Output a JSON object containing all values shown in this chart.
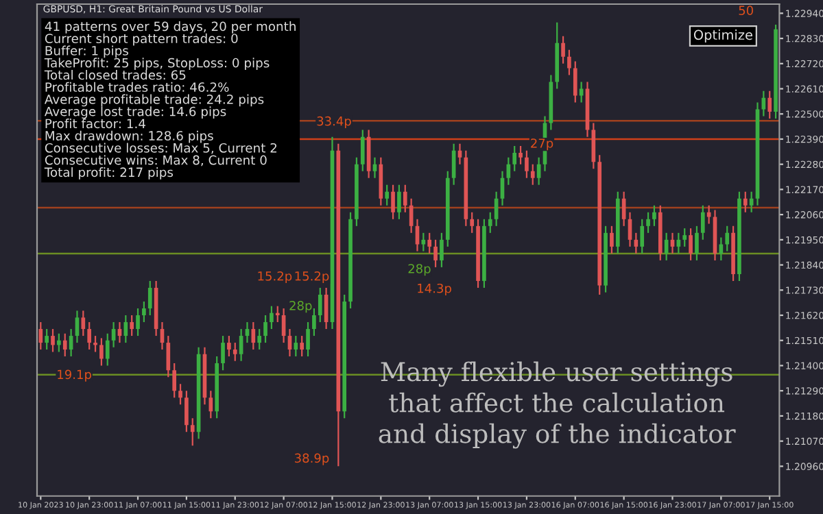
{
  "chart_data": {
    "type": "candlestick",
    "title": "GBPUSD, H1: Great Britain Pound vs US Dollar",
    "categories": [
      "10 Jan 2023",
      null,
      null,
      null,
      null,
      null,
      null,
      null,
      "10 Jan 23:00",
      null,
      null,
      null,
      null,
      null,
      null,
      null,
      "11 Jan 07:00",
      null,
      null,
      null,
      null,
      null,
      null,
      null,
      "11 Jan 15:00",
      null,
      null,
      null,
      null,
      null,
      null,
      null,
      "11 Jan 23:00",
      null,
      null,
      null,
      null,
      null,
      null,
      null,
      "12 Jan 07:00",
      null,
      null,
      null,
      null,
      null,
      null,
      null,
      "12 Jan 15:00",
      null,
      null,
      null,
      null,
      null,
      null,
      null,
      "12 Jan 23:00",
      null,
      null,
      null,
      null,
      null,
      null,
      null,
      "13 Jan 07:00",
      null,
      null,
      null,
      null,
      null,
      null,
      null,
      "13 Jan 15:00",
      null,
      null,
      null,
      null,
      null,
      null,
      null,
      "13 Jan 23:00",
      null,
      null,
      null,
      null,
      null,
      null,
      null,
      "16 Jan 07:00",
      null,
      null,
      null,
      null,
      null,
      null,
      null,
      "16 Jan 15:00",
      null,
      null,
      null,
      null,
      null,
      null,
      null,
      "16 Jan 23:00",
      null,
      null,
      null,
      null,
      null,
      null,
      null,
      "17 Jan 07:00",
      null,
      null,
      null,
      null,
      null,
      null,
      null,
      "17 Jan 15:00",
      null
    ],
    "ohlc": [
      [
        1.2156,
        1.2159,
        1.2147,
        1.215
      ],
      [
        1.215,
        1.2156,
        1.2147,
        1.2153
      ],
      [
        1.2153,
        1.2156,
        1.2146,
        1.2149
      ],
      [
        1.2149,
        1.2154,
        1.2146,
        1.2151
      ],
      [
        1.2151,
        1.2154,
        1.2144,
        1.2147
      ],
      [
        1.2147,
        1.2156,
        1.2144,
        1.2153
      ],
      [
        1.2153,
        1.2164,
        1.215,
        1.2161
      ],
      [
        1.2161,
        1.2164,
        1.2153,
        1.2156
      ],
      [
        1.2156,
        1.2159,
        1.2147,
        1.215
      ],
      [
        1.215,
        1.2153,
        1.2146,
        1.2149
      ],
      [
        1.2149,
        1.2152,
        1.214,
        1.2143
      ],
      [
        1.2143,
        1.2154,
        1.214,
        1.2151
      ],
      [
        1.2151,
        1.2159,
        1.2148,
        1.2156
      ],
      [
        1.2156,
        1.2159,
        1.215,
        1.2153
      ],
      [
        1.2153,
        1.2162,
        1.215,
        1.2159
      ],
      [
        1.2159,
        1.2162,
        1.2153,
        1.2156
      ],
      [
        1.2156,
        1.2165,
        1.2153,
        1.2162
      ],
      [
        1.2162,
        1.2168,
        1.2159,
        1.2165
      ],
      [
        1.2165,
        1.2177,
        1.2162,
        1.2174
      ],
      [
        1.2174,
        1.2177,
        1.2153,
        1.2156
      ],
      [
        1.2156,
        1.2159,
        1.2147,
        1.215
      ],
      [
        1.215,
        1.2153,
        1.2135,
        1.2138
      ],
      [
        1.2138,
        1.2141,
        1.2126,
        1.2129
      ],
      [
        1.2129,
        1.2132,
        1.2123,
        1.2126
      ],
      [
        1.2126,
        1.2129,
        1.2111,
        1.2114
      ],
      [
        1.2114,
        1.2117,
        1.2105,
        1.2111
      ],
      [
        1.2111,
        1.2148,
        1.2108,
        1.2145
      ],
      [
        1.2145,
        1.2148,
        1.2123,
        1.2126
      ],
      [
        1.2126,
        1.2129,
        1.2117,
        1.212
      ],
      [
        1.212,
        1.2144,
        1.2117,
        1.2141
      ],
      [
        1.2141,
        1.2153,
        1.2138,
        1.215
      ],
      [
        1.215,
        1.2153,
        1.2144,
        1.2147
      ],
      [
        1.2147,
        1.215,
        1.2142,
        1.2145
      ],
      [
        1.2145,
        1.2156,
        1.2142,
        1.2153
      ],
      [
        1.2153,
        1.2159,
        1.215,
        1.2156
      ],
      [
        1.2156,
        1.2159,
        1.2147,
        1.215
      ],
      [
        1.215,
        1.2156,
        1.2147,
        1.2153
      ],
      [
        1.2153,
        1.2162,
        1.215,
        1.2159
      ],
      [
        1.2159,
        1.2166,
        1.2156,
        1.2163
      ],
      [
        1.2163,
        1.2166,
        1.2159,
        1.2162
      ],
      [
        1.2162,
        1.2165,
        1.215,
        1.2153
      ],
      [
        1.2153,
        1.2156,
        1.2144,
        1.2147
      ],
      [
        1.2147,
        1.2153,
        1.2144,
        1.215
      ],
      [
        1.215,
        1.2153,
        1.2144,
        1.2147
      ],
      [
        1.2147,
        1.2159,
        1.2144,
        1.2156
      ],
      [
        1.2156,
        1.2165,
        1.2153,
        1.2162
      ],
      [
        1.2162,
        1.2174,
        1.2159,
        1.2171
      ],
      [
        1.2171,
        1.2174,
        1.2156,
        1.2159
      ],
      [
        1.2159,
        1.224,
        1.2156,
        1.2234
      ],
      [
        1.2234,
        1.2237,
        1.2096,
        1.212
      ],
      [
        1.212,
        1.2171,
        1.2117,
        1.2168
      ],
      [
        1.2168,
        1.2207,
        1.2165,
        1.2204
      ],
      [
        1.2204,
        1.2231,
        1.2201,
        1.2228
      ],
      [
        1.2228,
        1.2243,
        1.2225,
        1.224
      ],
      [
        1.224,
        1.2243,
        1.2222,
        1.2225
      ],
      [
        1.2225,
        1.2231,
        1.2222,
        1.2228
      ],
      [
        1.2228,
        1.2231,
        1.221,
        1.2213
      ],
      [
        1.2213,
        1.2219,
        1.221,
        1.2216
      ],
      [
        1.2216,
        1.2219,
        1.2204,
        1.2207
      ],
      [
        1.2207,
        1.2219,
        1.2204,
        1.2216
      ],
      [
        1.2216,
        1.2219,
        1.2207,
        1.221
      ],
      [
        1.221,
        1.2213,
        1.2198,
        1.2201
      ],
      [
        1.2201,
        1.2204,
        1.219,
        1.2193
      ],
      [
        1.2193,
        1.2198,
        1.219,
        1.2195
      ],
      [
        1.2195,
        1.2198,
        1.2189,
        1.2192
      ],
      [
        1.2192,
        1.2195,
        1.2183,
        1.2186
      ],
      [
        1.2186,
        1.2198,
        1.2183,
        1.2195
      ],
      [
        1.2195,
        1.2225,
        1.2192,
        1.2222
      ],
      [
        1.2222,
        1.2237,
        1.2219,
        1.2234
      ],
      [
        1.2234,
        1.2237,
        1.2228,
        1.2231
      ],
      [
        1.2231,
        1.2234,
        1.2201,
        1.2204
      ],
      [
        1.2204,
        1.2207,
        1.2198,
        1.2201
      ],
      [
        1.2201,
        1.2204,
        1.2174,
        1.2177
      ],
      [
        1.2177,
        1.2204,
        1.2174,
        1.2201
      ],
      [
        1.2201,
        1.2207,
        1.2198,
        1.2204
      ],
      [
        1.2204,
        1.2216,
        1.2201,
        1.2213
      ],
      [
        1.2213,
        1.2225,
        1.221,
        1.2222
      ],
      [
        1.2222,
        1.2231,
        1.2219,
        1.2228
      ],
      [
        1.2228,
        1.2236,
        1.2225,
        1.2233
      ],
      [
        1.2233,
        1.2236,
        1.2228,
        1.2231
      ],
      [
        1.2231,
        1.2234,
        1.2222,
        1.2225
      ],
      [
        1.2225,
        1.2228,
        1.2219,
        1.2222
      ],
      [
        1.2222,
        1.2231,
        1.2219,
        1.2228
      ],
      [
        1.2228,
        1.2249,
        1.2225,
        1.2246
      ],
      [
        1.2246,
        1.2267,
        1.2243,
        1.2264
      ],
      [
        1.2264,
        1.229,
        1.2261,
        1.2281
      ],
      [
        1.2281,
        1.2284,
        1.2272,
        1.2275
      ],
      [
        1.2275,
        1.2278,
        1.2267,
        1.227
      ],
      [
        1.227,
        1.2273,
        1.2255,
        1.2258
      ],
      [
        1.2258,
        1.2264,
        1.2255,
        1.2261
      ],
      [
        1.2261,
        1.2264,
        1.224,
        1.2243
      ],
      [
        1.2243,
        1.2246,
        1.2226,
        1.2229
      ],
      [
        1.2229,
        1.2232,
        1.2171,
        1.2175
      ],
      [
        1.2175,
        1.2201,
        1.2172,
        1.2198
      ],
      [
        1.2198,
        1.2201,
        1.2189,
        1.2192
      ],
      [
        1.2192,
        1.2216,
        1.2189,
        1.2213
      ],
      [
        1.2213,
        1.2216,
        1.2201,
        1.2204
      ],
      [
        1.2204,
        1.2207,
        1.2192,
        1.2195
      ],
      [
        1.2195,
        1.2198,
        1.2189,
        1.2192
      ],
      [
        1.2192,
        1.2204,
        1.2189,
        1.2201
      ],
      [
        1.2201,
        1.2207,
        1.2198,
        1.2204
      ],
      [
        1.2204,
        1.221,
        1.2201,
        1.2207
      ],
      [
        1.2207,
        1.221,
        1.2186,
        1.2189
      ],
      [
        1.2189,
        1.2198,
        1.2186,
        1.2195
      ],
      [
        1.2195,
        1.2198,
        1.2189,
        1.2192
      ],
      [
        1.2192,
        1.2198,
        1.2189,
        1.2195
      ],
      [
        1.2195,
        1.22,
        1.2192,
        1.2197
      ],
      [
        1.2197,
        1.22,
        1.2186,
        1.2189
      ],
      [
        1.2189,
        1.2201,
        1.2186,
        1.2198
      ],
      [
        1.2198,
        1.221,
        1.2195,
        1.2207
      ],
      [
        1.2207,
        1.221,
        1.2202,
        1.2205
      ],
      [
        1.2205,
        1.2208,
        1.2186,
        1.2189
      ],
      [
        1.2189,
        1.2196,
        1.2186,
        1.2193
      ],
      [
        1.2193,
        1.2201,
        1.219,
        1.2198
      ],
      [
        1.2198,
        1.2201,
        1.2177,
        1.218
      ],
      [
        1.218,
        1.2216,
        1.2177,
        1.2213
      ],
      [
        1.2213,
        1.2216,
        1.2207,
        1.221
      ],
      [
        1.221,
        1.2216,
        1.2207,
        1.2213
      ],
      [
        1.2213,
        1.2255,
        1.221,
        1.2252
      ],
      [
        1.2252,
        1.226,
        1.2249,
        1.2257
      ],
      [
        1.2257,
        1.226,
        1.2248,
        1.2251
      ],
      [
        1.2251,
        1.2289,
        1.2248,
        1.2287
      ]
    ],
    "ylim": [
      1.2083,
      1.2298
    ],
    "yticks": [
      {
        "value": 1.2294,
        "label": "1.22940"
      },
      {
        "value": 1.2283,
        "label": "1.22830"
      },
      {
        "value": 1.2272,
        "label": "1.22720"
      },
      {
        "value": 1.2261,
        "label": "1.22610"
      },
      {
        "value": 1.225,
        "label": "1.22500"
      },
      {
        "value": 1.2239,
        "label": "1.22390"
      },
      {
        "value": 1.2228,
        "label": "1.22280"
      },
      {
        "value": 1.2217,
        "label": "1.22170"
      },
      {
        "value": 1.2206,
        "label": "1.22060"
      },
      {
        "value": 1.2195,
        "label": "1.21950"
      },
      {
        "value": 1.2184,
        "label": "1.21840"
      },
      {
        "value": 1.2173,
        "label": "1.21730"
      },
      {
        "value": 1.2162,
        "label": "1.21620"
      },
      {
        "value": 1.2151,
        "label": "1.21510"
      },
      {
        "value": 1.214,
        "label": "1.21400"
      },
      {
        "value": 1.2129,
        "label": "1.21290"
      },
      {
        "value": 1.2118,
        "label": "1.21180"
      },
      {
        "value": 1.2107,
        "label": "1.21070"
      },
      {
        "value": 1.2096,
        "label": "1.20960"
      }
    ],
    "ref_lines": [
      {
        "axis": "y",
        "value": 1.2209,
        "label": null,
        "color": "#a0401e"
      },
      {
        "axis": "y",
        "value": 1.2247,
        "label": null,
        "color": "#a0401e"
      },
      {
        "axis": "y",
        "value": 1.2239,
        "label": null,
        "color": "#d0401a"
      },
      {
        "axis": "y",
        "value": 1.2189,
        "label": null,
        "color": "#6b8e23"
      },
      {
        "axis": "y",
        "value": 1.2136,
        "label": null,
        "color": "#6b8e23"
      }
    ],
    "annotations": [
      "41 patterns over 59 days, 20 per month",
      "Current short pattern trades: 0",
      "Buffer: 1 pips",
      "TakeProfit: 25 pips, StopLoss: 0 pips",
      "Total closed trades: 65",
      "Profitable trades ratio: 46.2%",
      "Average profitable trade: 24.2 pips",
      "Average lost trade: 14.6 pips",
      "Profit factor: 1.4",
      "Max drawdown: 128.6 pips",
      "Consecutive losses: Max 5, Current 2",
      "Consecutive wins: Max 8, Current 0",
      "Total profit: 217 pips",
      "33.4p",
      "27p",
      "28p",
      "14.3p",
      "15.2p",
      "15.2p",
      "28p",
      "19.1p",
      "38.9p",
      "50",
      "Optimize",
      "Many flexible user settings\nthat affect the calculation\nand display of the indicator"
    ],
    "grid": false
  }
}
